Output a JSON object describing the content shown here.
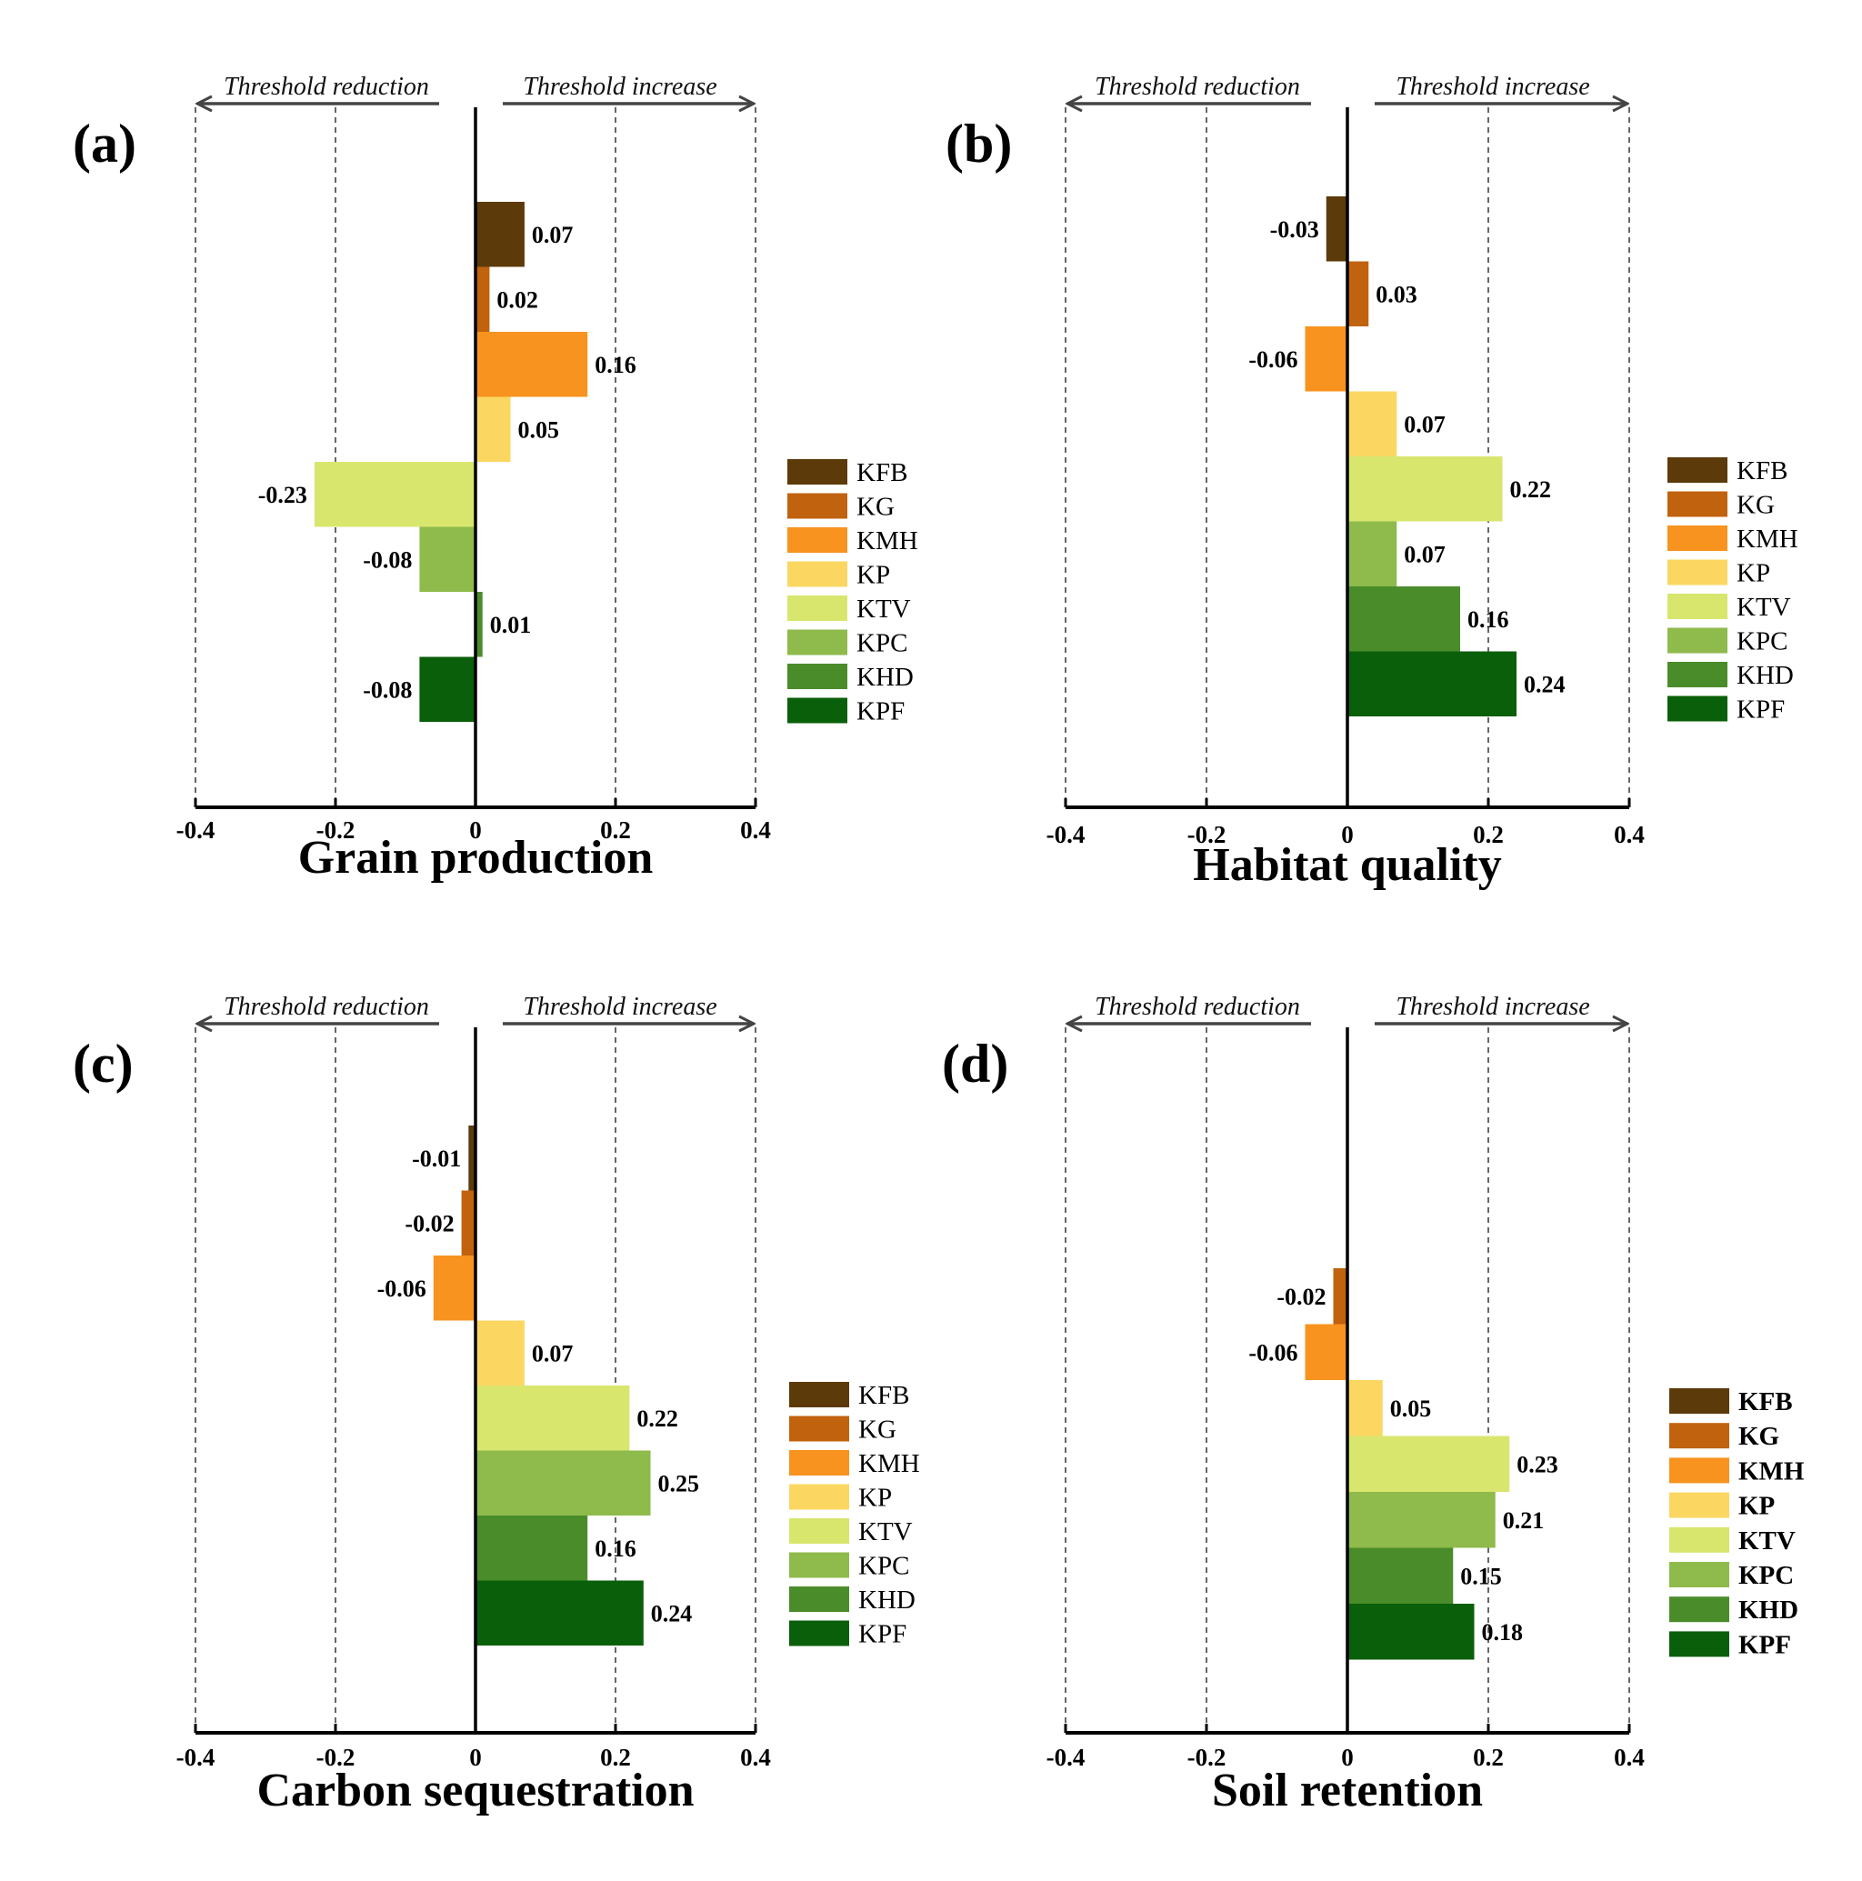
{
  "figure": {
    "reduction_label": "Threshold reduction",
    "increase_label": "Threshold increase"
  },
  "colors": {
    "KFB": "#5c3a0a",
    "KG": "#c0620e",
    "KMH": "#f7931e",
    "KP": "#fbd762",
    "KTV": "#d9e66e",
    "KPC": "#8fba4c",
    "KHD": "#4a8c2a",
    "KPF": "#0a5f0a"
  },
  "chart_data": [
    {
      "type": "bar",
      "orientation": "horizontal",
      "panel": "(a)",
      "xlabel": "Grain production",
      "xlim": [
        -0.4,
        0.4
      ],
      "xticks": [
        -0.4,
        -0.2,
        0,
        0.2,
        0.4
      ],
      "tick_labels": [
        "-0.4",
        "-0.2",
        "0",
        "0.2",
        "0.4"
      ],
      "categories": [
        "KFB",
        "KG",
        "KMH",
        "KP",
        "KTV",
        "KPC",
        "KHD",
        "KPF"
      ],
      "values": [
        0.07,
        0.02,
        0.16,
        0.05,
        -0.23,
        -0.08,
        0.01,
        -0.08
      ],
      "value_labels": [
        "0.07",
        "0.02",
        "0.16",
        "0.05",
        "-0.23",
        "-0.08",
        "0.01",
        "-0.08"
      ],
      "legend": "right",
      "gridlines": [
        -0.4,
        -0.2,
        0.2,
        0.4
      ]
    },
    {
      "type": "bar",
      "orientation": "horizontal",
      "panel": "(b)",
      "xlabel": "Habitat quality",
      "xlim": [
        -0.4,
        0.4
      ],
      "xticks": [
        -0.4,
        -0.2,
        0,
        0.2,
        0.4
      ],
      "tick_labels": [
        "-0.4",
        "-0.2",
        "0",
        "0.2",
        "0.4"
      ],
      "categories": [
        "KFB",
        "KG",
        "KMH",
        "KP",
        "KTV",
        "KPC",
        "KHD",
        "KPF"
      ],
      "values": [
        -0.03,
        0.03,
        -0.06,
        0.07,
        0.22,
        0.07,
        0.16,
        0.24
      ],
      "value_labels": [
        "-0.03",
        "0.03",
        "-0.06",
        "0.07",
        "0.22",
        "0.07",
        "0.16",
        "0.24"
      ],
      "legend": "right",
      "gridlines": [
        -0.4,
        -0.2,
        0.2,
        0.4
      ]
    },
    {
      "type": "bar",
      "orientation": "horizontal",
      "panel": "(c)",
      "xlabel": "Carbon sequestration",
      "xlim": [
        -0.4,
        0.4
      ],
      "xticks": [
        -0.4,
        -0.2,
        0,
        0.2,
        0.4
      ],
      "tick_labels": [
        "-0.4",
        "-0.2",
        "0",
        "0.2",
        "0.4"
      ],
      "categories": [
        "KFB",
        "KG",
        "KMH",
        "KP",
        "KTV",
        "KPC",
        "KHD",
        "KPF"
      ],
      "values": [
        -0.01,
        -0.02,
        -0.06,
        0.07,
        0.22,
        0.25,
        0.16,
        0.24
      ],
      "value_labels": [
        "-0.01",
        "-0.02",
        "-0.06",
        "0.07",
        "0.22",
        "0.25",
        "0.16",
        "0.24"
      ],
      "legend": "right",
      "gridlines": [
        -0.4,
        -0.2,
        0.2,
        0.4
      ]
    },
    {
      "type": "bar",
      "orientation": "horizontal",
      "panel": "(d)",
      "xlabel": "Soil retention",
      "xlim": [
        -0.4,
        0.4
      ],
      "xticks": [
        -0.4,
        -0.2,
        0,
        0.2,
        0.4
      ],
      "tick_labels": [
        "-0.4",
        "-0.2",
        "0",
        "0.2",
        "0.4"
      ],
      "categories": [
        "KG",
        "KMH",
        "KP",
        "KTV",
        "KPC",
        "KHD",
        "KPF"
      ],
      "values": [
        -0.02,
        -0.06,
        0.05,
        0.23,
        0.21,
        0.15,
        0.18
      ],
      "value_labels": [
        "-0.02",
        "-0.06",
        "0.05",
        "0.23",
        "0.21",
        "0.15",
        "0.18"
      ],
      "legend_categories": [
        "KFB",
        "KG",
        "KMH",
        "KP",
        "KTV",
        "KPC",
        "KHD",
        "KPF"
      ],
      "legend_bold": true,
      "legend": "right",
      "gridlines": [
        -0.4,
        -0.2,
        0.2,
        0.4
      ]
    }
  ]
}
